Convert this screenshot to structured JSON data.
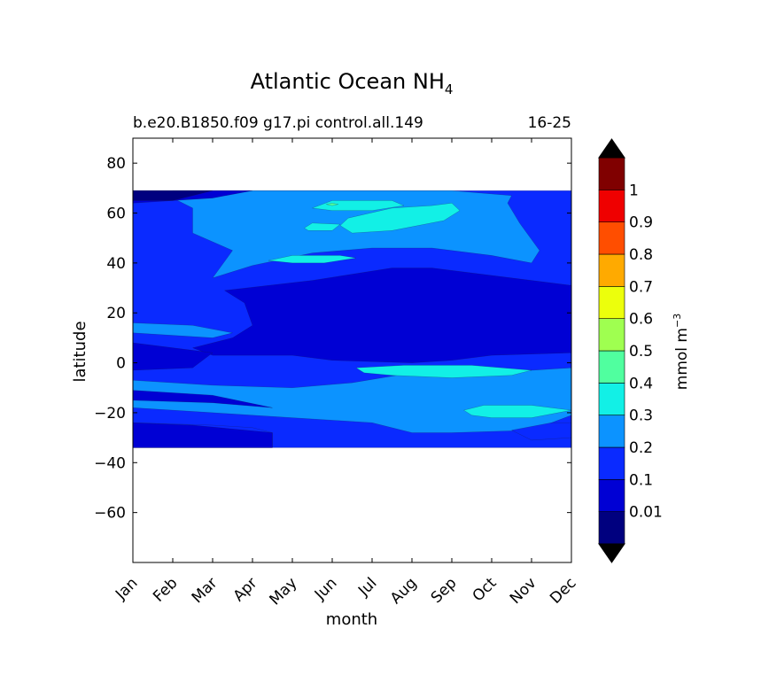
{
  "chart_data": {
    "type": "heatmap",
    "title": "Atlantic Ocean NH",
    "title_subscript": "4",
    "subtitle_left": "b.e20.B1850.f09 g17.pi control.all.149",
    "subtitle_right": "16-25",
    "xlabel": "month",
    "ylabel": "latitude",
    "x_categories": [
      "Jan",
      "Feb",
      "Mar",
      "Apr",
      "May",
      "Jun",
      "Jul",
      "Aug",
      "Sep",
      "Oct",
      "Nov",
      "Dec"
    ],
    "ylim": [
      -80,
      90
    ],
    "y_ticks": [
      -60,
      -40,
      -20,
      0,
      20,
      40,
      60,
      80
    ],
    "y_tick_labels": [
      "−60",
      "−40",
      "−20",
      "0",
      "20",
      "40",
      "60",
      "80"
    ],
    "data_lat_range": [
      -34,
      69
    ],
    "colorbar": {
      "label": "mmol m",
      "label_superscript": "−3",
      "levels": [
        0,
        0.01,
        0.1,
        0.2,
        0.3,
        0.4,
        0.5,
        0.6,
        0.7,
        0.8,
        0.9,
        1,
        1.1
      ],
      "tick_labels": [
        "0.01",
        "0.1",
        "0.2",
        "0.3",
        "0.4",
        "0.5",
        "0.6",
        "0.7",
        "0.8",
        "0.9",
        "1"
      ],
      "colors": [
        "#00007f",
        "#0000d4",
        "#0a2aff",
        "#0c93ff",
        "#12f0e6",
        "#50ff9f",
        "#9fff50",
        "#ecff0c",
        "#ffaa00",
        "#ff4e00",
        "#ef0000",
        "#800000"
      ],
      "extend_under_color": "#000000",
      "extend_over_color": "#000000"
    },
    "regions": [
      {
        "level_index": 2,
        "points": [
          [
            0,
            -34
          ],
          [
            11,
            -34
          ],
          [
            11,
            69
          ],
          [
            0,
            69
          ]
        ]
      },
      {
        "level_index": 3,
        "points": [
          [
            1,
            69
          ],
          [
            8,
            69
          ],
          [
            9.5,
            67
          ],
          [
            9.4,
            64
          ],
          [
            9.7,
            56
          ],
          [
            10.2,
            45
          ],
          [
            10,
            40
          ],
          [
            9,
            43
          ],
          [
            7.5,
            46
          ],
          [
            6,
            46
          ],
          [
            4.5,
            44
          ],
          [
            3,
            39
          ],
          [
            2,
            34
          ],
          [
            2.5,
            45
          ],
          [
            1.5,
            52
          ],
          [
            1.5,
            62
          ],
          [
            1,
            66
          ]
        ]
      },
      {
        "level_index": 3,
        "points": [
          [
            0,
            16
          ],
          [
            1.5,
            15
          ],
          [
            2.5,
            12
          ],
          [
            2,
            10
          ],
          [
            0,
            12
          ]
        ]
      },
      {
        "level_index": 3,
        "points": [
          [
            0,
            -7
          ],
          [
            2,
            -9
          ],
          [
            4,
            -10
          ],
          [
            5.5,
            -8
          ],
          [
            7,
            -4
          ],
          [
            9,
            -4
          ],
          [
            11,
            -2
          ],
          [
            11,
            -21
          ],
          [
            10,
            -27
          ],
          [
            8,
            -28
          ],
          [
            7,
            -28
          ],
          [
            6,
            -24
          ],
          [
            4,
            -22
          ],
          [
            2,
            -20
          ],
          [
            0,
            -18
          ]
        ]
      },
      {
        "level_index": 3,
        "points": [
          [
            11,
            9
          ],
          [
            10.5,
            13
          ],
          [
            11,
            18
          ]
        ]
      },
      {
        "level_index": 2,
        "points": [
          [
            0,
            -34
          ],
          [
            0,
            -24
          ],
          [
            2,
            -25
          ],
          [
            3,
            -26
          ],
          [
            3.5,
            -28
          ],
          [
            3.5,
            -34
          ]
        ]
      },
      {
        "level_index": 2,
        "points": [
          [
            9.5,
            -27
          ],
          [
            10.5,
            -24
          ],
          [
            11,
            -24
          ],
          [
            11,
            -30
          ],
          [
            10,
            -31
          ]
        ]
      },
      {
        "level_index": 1,
        "points": [
          [
            2.3,
            29
          ],
          [
            4.5,
            33
          ],
          [
            6.5,
            38
          ],
          [
            7.5,
            38
          ],
          [
            9.5,
            34
          ],
          [
            11,
            31
          ],
          [
            11,
            4
          ],
          [
            9,
            3
          ],
          [
            8,
            1
          ],
          [
            7,
            0
          ],
          [
            5,
            1
          ],
          [
            4,
            3
          ],
          [
            2,
            3
          ],
          [
            1.5,
            6
          ],
          [
            2.5,
            10
          ],
          [
            3,
            15
          ],
          [
            2.8,
            24
          ]
        ]
      },
      {
        "level_index": 1,
        "points": [
          [
            0,
            8
          ],
          [
            2,
            4
          ],
          [
            1.5,
            -2
          ],
          [
            0,
            -3
          ]
        ]
      },
      {
        "level_index": 1,
        "points": [
          [
            0,
            69
          ],
          [
            3,
            69
          ],
          [
            2,
            66
          ],
          [
            0,
            64
          ]
        ]
      },
      {
        "level_index": 1,
        "points": [
          [
            0,
            -15
          ],
          [
            2,
            -16
          ],
          [
            3.5,
            -18
          ],
          [
            2,
            -13
          ],
          [
            0,
            -11
          ]
        ]
      },
      {
        "level_index": 1,
        "points": [
          [
            0,
            -24
          ],
          [
            1.5,
            -25
          ],
          [
            3.5,
            -28
          ],
          [
            3.5,
            -34
          ],
          [
            0,
            -34
          ]
        ]
      },
      {
        "level_index": 0,
        "points": [
          [
            0,
            69
          ],
          [
            2,
            69
          ],
          [
            1,
            65
          ],
          [
            0,
            65
          ]
        ]
      },
      {
        "level_index": 4,
        "points": [
          [
            5.4,
            58
          ],
          [
            6.5,
            62
          ],
          [
            7.5,
            63
          ],
          [
            8,
            64
          ],
          [
            8.2,
            61
          ],
          [
            7.8,
            57
          ],
          [
            6.5,
            53
          ],
          [
            5.5,
            52
          ],
          [
            5.2,
            55
          ]
        ]
      },
      {
        "level_index": 4,
        "points": [
          [
            4.5,
            62
          ],
          [
            5,
            65
          ],
          [
            6.5,
            65
          ],
          [
            6.8,
            63
          ],
          [
            6,
            61
          ],
          [
            5,
            61
          ]
        ]
      },
      {
        "level_index": 4,
        "points": [
          [
            3.4,
            41
          ],
          [
            4,
            43
          ],
          [
            5.2,
            43
          ],
          [
            5.6,
            42
          ],
          [
            4.8,
            40
          ],
          [
            4,
            40
          ]
        ]
      },
      {
        "level_index": 4,
        "points": [
          [
            4.3,
            54
          ],
          [
            4.5,
            56
          ],
          [
            5.2,
            55.5
          ],
          [
            5,
            53
          ],
          [
            4.4,
            53
          ]
        ]
      },
      {
        "level_index": 4,
        "points": [
          [
            5.6,
            -2
          ],
          [
            6.8,
            -1
          ],
          [
            8.5,
            -1
          ],
          [
            10,
            -3
          ],
          [
            9.5,
            -5
          ],
          [
            8,
            -6
          ],
          [
            6.5,
            -5
          ],
          [
            5.8,
            -4
          ]
        ]
      },
      {
        "level_index": 4,
        "points": [
          [
            8.3,
            -19
          ],
          [
            8.8,
            -17
          ],
          [
            10,
            -17
          ],
          [
            11,
            -19
          ],
          [
            10,
            -22
          ],
          [
            9,
            -22
          ],
          [
            8.5,
            -21
          ]
        ]
      },
      {
        "level_index": 5,
        "points": [
          [
            4.85,
            63.5
          ],
          [
            5,
            64
          ],
          [
            5.15,
            63.5
          ],
          [
            5,
            63
          ]
        ]
      }
    ]
  }
}
